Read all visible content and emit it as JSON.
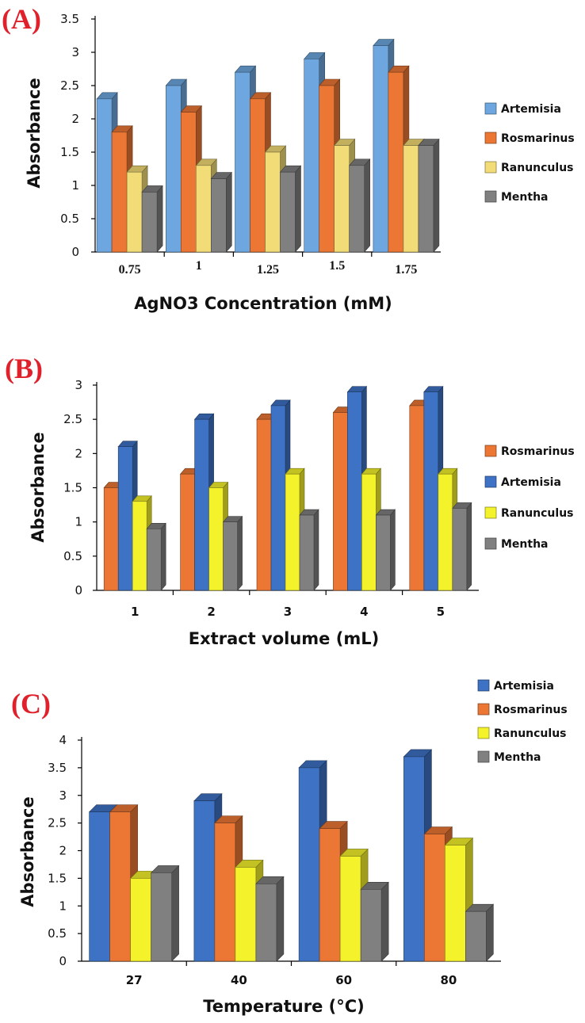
{
  "colors": {
    "artemisia_a": "#6ea7df",
    "rosmarinus": "#ec7734",
    "ranunculus_a": "#f2dc77",
    "mentha": "#808080",
    "artemisia": "#3d72c4",
    "ranunculus": "#f4f22a",
    "label": "#e0202a"
  },
  "chart_data": [
    {
      "panel": "(A)",
      "type": "bar",
      "title": "",
      "xlabel": "AgNO3 Concentration (mM)",
      "ylabel": "Absorbance",
      "ylim": [
        0,
        3.5
      ],
      "yticks": [
        "0",
        "0.5",
        "1",
        "1.5",
        "2",
        "2.5",
        "3",
        "3.5"
      ],
      "categories": [
        "0.75",
        "1",
        "1.25",
        "1.5",
        "1.75"
      ],
      "series": [
        {
          "name": "Artemisia",
          "color": "#6ea7df",
          "values": [
            2.3,
            2.5,
            2.7,
            2.9,
            3.1
          ]
        },
        {
          "name": "Rosmarinus",
          "color": "#ec7734",
          "values": [
            1.8,
            2.1,
            2.3,
            2.5,
            2.7
          ]
        },
        {
          "name": "Ranunculus",
          "color": "#f2dc77",
          "values": [
            1.2,
            1.3,
            1.5,
            1.6,
            1.6
          ]
        },
        {
          "name": "Mentha",
          "color": "#808080",
          "values": [
            0.9,
            1.1,
            1.2,
            1.3,
            1.6
          ]
        }
      ],
      "legend": [
        "Artemisia",
        "Rosmarinus",
        "Ranunculus",
        "Mentha"
      ]
    },
    {
      "panel": "(B)",
      "type": "bar",
      "title": "",
      "xlabel": "Extract volume (mL)",
      "ylabel": "Absorbance",
      "ylim": [
        0,
        3
      ],
      "yticks": [
        "0",
        "0.5",
        "1",
        "1.5",
        "2",
        "2.5",
        "3"
      ],
      "categories": [
        "1",
        "2",
        "3",
        "4",
        "5"
      ],
      "series": [
        {
          "name": "Rosmarinus",
          "color": "#ec7734",
          "values": [
            1.5,
            1.7,
            2.5,
            2.6,
            2.7
          ]
        },
        {
          "name": "Artemisia",
          "color": "#3d72c4",
          "values": [
            2.1,
            2.5,
            2.7,
            2.9,
            2.9
          ]
        },
        {
          "name": "Ranunculus",
          "color": "#f4f22a",
          "values": [
            1.3,
            1.5,
            1.7,
            1.7,
            1.7
          ]
        },
        {
          "name": "Mentha",
          "color": "#808080",
          "values": [
            0.9,
            1.0,
            1.1,
            1.1,
            1.2
          ]
        }
      ],
      "legend": [
        "Rosmarinus",
        "Artemisia",
        "Ranunculus",
        "Mentha"
      ]
    },
    {
      "panel": "(C)",
      "type": "bar",
      "title": "",
      "xlabel": "Temperature (°C)",
      "ylabel": "Absorbance",
      "ylim": [
        0,
        4
      ],
      "yticks": [
        "0",
        "0.5",
        "1",
        "1.5",
        "2",
        "2.5",
        "3",
        "3.5",
        "4"
      ],
      "categories": [
        "27",
        "40",
        "60",
        "80"
      ],
      "series": [
        {
          "name": "Artemisia",
          "color": "#3d72c4",
          "values": [
            2.7,
            2.9,
            3.5,
            3.7
          ]
        },
        {
          "name": "Rosmarinus",
          "color": "#ec7734",
          "values": [
            2.7,
            2.5,
            2.4,
            2.3
          ]
        },
        {
          "name": "Ranunculus",
          "color": "#f4f22a",
          "values": [
            1.5,
            1.7,
            1.9,
            2.1
          ]
        },
        {
          "name": "Mentha",
          "color": "#808080",
          "values": [
            1.6,
            1.4,
            1.3,
            0.9
          ]
        }
      ],
      "legend": [
        "Artemisia",
        "Rosmarinus",
        "Ranunculus",
        "Mentha"
      ]
    }
  ]
}
